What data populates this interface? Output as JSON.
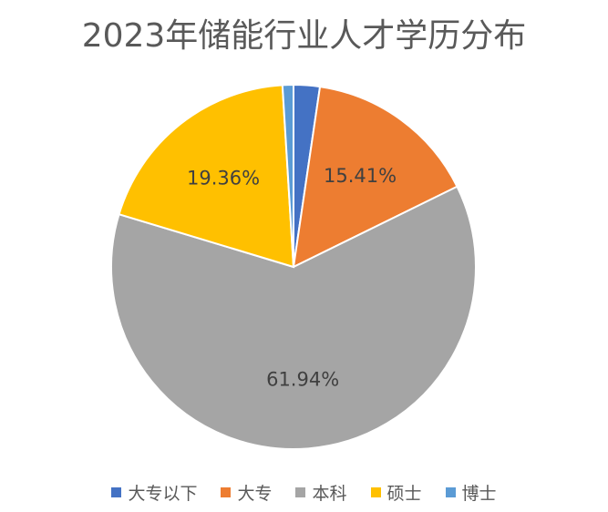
{
  "chart_data": {
    "type": "pie",
    "title": "2023年储能行业人才学历分布",
    "categories": [
      "大专以下",
      "大专",
      "本科",
      "硕士",
      "博士"
    ],
    "values": [
      2.32,
      15.41,
      61.94,
      19.36,
      0.97
    ],
    "labels": [
      "",
      "15.41%",
      "61.94%",
      "19.36%",
      ""
    ],
    "colors": [
      "#4472C4",
      "#ED7D31",
      "#A5A5A5",
      "#FFC000",
      "#5B9BD5"
    ],
    "legend_position": "bottom"
  }
}
